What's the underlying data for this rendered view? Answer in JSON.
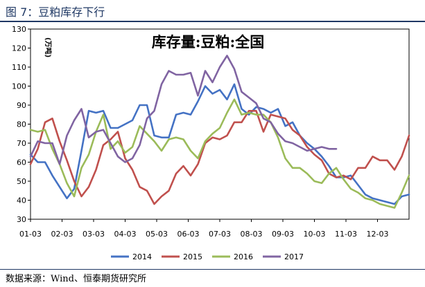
{
  "figure": {
    "title": "图 7：豆粕库存下行",
    "source": "数据来源：Wind、恒泰期货研究所"
  },
  "chart_data": {
    "type": "line",
    "title": "库存量:豆粕:全国",
    "ylabel": "(万吨)",
    "xlabel": "",
    "ylim": [
      30,
      130
    ],
    "yticks": [
      30,
      40,
      50,
      60,
      70,
      80,
      90,
      100,
      110,
      120,
      130
    ],
    "x_tick_labels": [
      "01-03",
      "02-03",
      "03-03",
      "04-03",
      "05-03",
      "06-03",
      "07-03",
      "08-03",
      "09-03",
      "10-03",
      "11-03",
      "12-03"
    ],
    "x_unit": "week",
    "xlim": [
      1,
      53
    ],
    "legend_position": "bottom",
    "grid": false,
    "series": [
      {
        "name": "2014",
        "color": "#4472c4",
        "x": [
          1,
          2,
          3,
          4,
          5,
          6,
          7,
          8,
          9,
          10,
          11,
          12,
          13,
          14,
          15,
          16,
          17,
          18,
          19,
          20,
          21,
          22,
          23,
          24,
          25,
          26,
          27,
          28,
          29,
          30,
          31,
          32,
          33,
          34,
          35,
          36,
          37,
          38,
          39,
          40,
          41,
          42,
          43,
          44,
          45,
          46,
          47,
          48,
          49,
          50,
          51,
          52,
          53
        ],
        "values": [
          64,
          60,
          60,
          53,
          47,
          41,
          46,
          66,
          87,
          86,
          87,
          78,
          78,
          80,
          82,
          90,
          90,
          74,
          73,
          73,
          85,
          86,
          85,
          92,
          100,
          96,
          98,
          93,
          101,
          88,
          85,
          89,
          88,
          86,
          88,
          79,
          81,
          74,
          70,
          67,
          63,
          58,
          52,
          52,
          53,
          48,
          43,
          41,
          40,
          39,
          38,
          42,
          43
        ]
      },
      {
        "name": "2015",
        "color": "#c0504d",
        "x": [
          1,
          2,
          3,
          4,
          5,
          6,
          7,
          8,
          9,
          10,
          11,
          12,
          13,
          14,
          15,
          16,
          17,
          18,
          19,
          20,
          21,
          22,
          23,
          24,
          25,
          26,
          27,
          28,
          29,
          30,
          31,
          32,
          33,
          34,
          35,
          36,
          37,
          38,
          39,
          40,
          41,
          42,
          43,
          44,
          45,
          46,
          47,
          48,
          49,
          50,
          51,
          52,
          53
        ],
        "values": [
          59,
          67,
          81,
          83,
          71,
          61,
          50,
          42,
          47,
          56,
          69,
          72,
          76,
          62,
          56,
          47,
          45,
          38,
          42,
          45,
          54,
          58,
          53,
          59,
          70,
          73,
          72,
          74,
          81,
          81,
          87,
          87,
          76,
          85,
          84,
          83,
          77,
          74,
          68,
          64,
          61,
          54,
          52,
          53,
          51,
          57,
          57,
          63,
          61,
          61,
          56,
          63,
          74
        ]
      },
      {
        "name": "2016",
        "color": "#9bbb59",
        "x": [
          1,
          2,
          3,
          4,
          5,
          6,
          7,
          8,
          9,
          10,
          11,
          12,
          13,
          14,
          15,
          16,
          17,
          18,
          19,
          20,
          21,
          22,
          23,
          24,
          25,
          26,
          27,
          28,
          29,
          30,
          31,
          32,
          33,
          34,
          35,
          36,
          37,
          38,
          39,
          40,
          41,
          42,
          43,
          44,
          45,
          46,
          47,
          48,
          49,
          50,
          51,
          52,
          53
        ],
        "values": [
          77,
          76,
          77,
          67,
          59,
          49,
          42,
          57,
          64,
          76,
          85,
          67,
          71,
          65,
          68,
          79,
          75,
          71,
          66,
          72,
          73,
          72,
          66,
          62,
          71,
          75,
          78,
          86,
          93,
          85,
          86,
          85,
          85,
          81,
          73,
          62,
          57,
          57,
          54,
          50,
          49,
          54,
          57,
          51,
          46,
          44,
          41,
          40,
          38,
          37,
          36,
          44,
          53
        ]
      },
      {
        "name": "2017",
        "color": "#8064a2",
        "x": [
          1,
          2,
          3,
          4,
          5,
          6,
          7,
          8,
          9,
          10,
          11,
          12,
          13,
          14,
          15,
          16,
          17,
          18,
          19,
          20,
          21,
          22,
          23,
          24,
          25,
          26,
          27,
          28,
          29,
          30,
          31,
          32,
          33,
          34,
          35,
          36,
          37,
          38,
          39,
          40,
          41,
          42,
          43
        ],
        "values": [
          63,
          71,
          70,
          70,
          59,
          74,
          82,
          88,
          73,
          76,
          77,
          70,
          63,
          60,
          62,
          69,
          83,
          87,
          101,
          108,
          106,
          106,
          107,
          95,
          108,
          102,
          110,
          116,
          109,
          97,
          94,
          91,
          83,
          81,
          75,
          71,
          70,
          68,
          66,
          67,
          68,
          67,
          67
        ]
      }
    ]
  }
}
